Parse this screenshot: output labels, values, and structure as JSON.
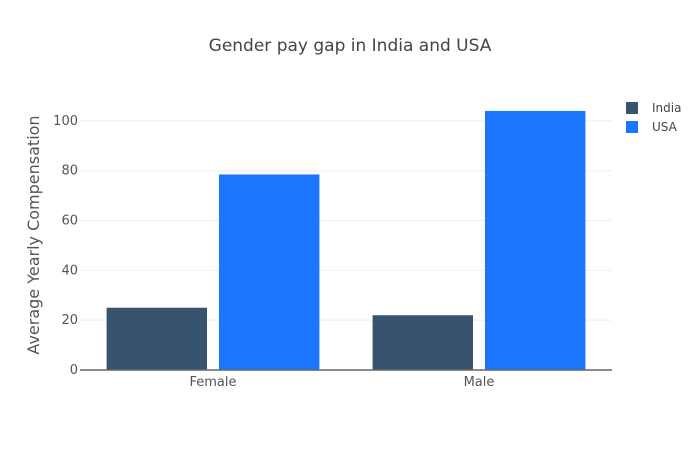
{
  "chart_data": {
    "type": "bar",
    "title": "Gender pay gap in India and USA",
    "xlabel": "",
    "ylabel": "Average Yearly Compensation",
    "categories": [
      "Female",
      "Male"
    ],
    "series": [
      {
        "name": "India",
        "values": [
          25,
          22
        ],
        "color": "#37536d"
      },
      {
        "name": "USA",
        "values": [
          78.5,
          104
        ],
        "color": "#1a76ff"
      }
    ],
    "ylim": [
      0,
      110
    ],
    "yticks": [
      0,
      20,
      40,
      60,
      80,
      100
    ],
    "grid": true,
    "legend_position": "top-right"
  }
}
